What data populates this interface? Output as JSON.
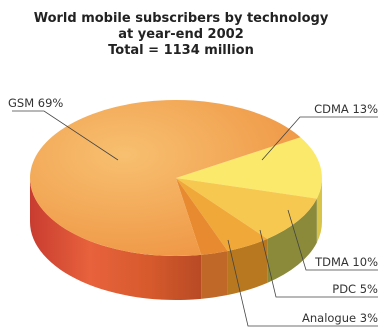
{
  "chart_data": {
    "type": "pie",
    "title": "World mobile subscribers by technology at year-end 2002",
    "title_lines": [
      "World mobile subscribers by technology",
      "at year-end 2002",
      "Total = 1134 million"
    ],
    "total_text": "Total = 1134 million",
    "slices": [
      {
        "name": "GSM",
        "value": 69,
        "label": "GSM 69%",
        "color": "#f2a14a",
        "side_color": "#e0603c"
      },
      {
        "name": "CDMA",
        "value": 13,
        "label": "CDMA 13%",
        "color": "#fbe96c",
        "side_color": "#d9c44a"
      },
      {
        "name": "TDMA",
        "value": 10,
        "label": "TDMA 10%",
        "color": "#f7c850",
        "side_color": "#8a8a3a"
      },
      {
        "name": "PDC",
        "value": 5,
        "label": "PDC 5%",
        "color": "#f0a838",
        "side_color": "#b87820"
      },
      {
        "name": "Analogue",
        "value": 3,
        "label": "Analogue 3%",
        "color": "#e88a30",
        "side_color": "#c06828"
      }
    ],
    "style": "3d-pie"
  }
}
